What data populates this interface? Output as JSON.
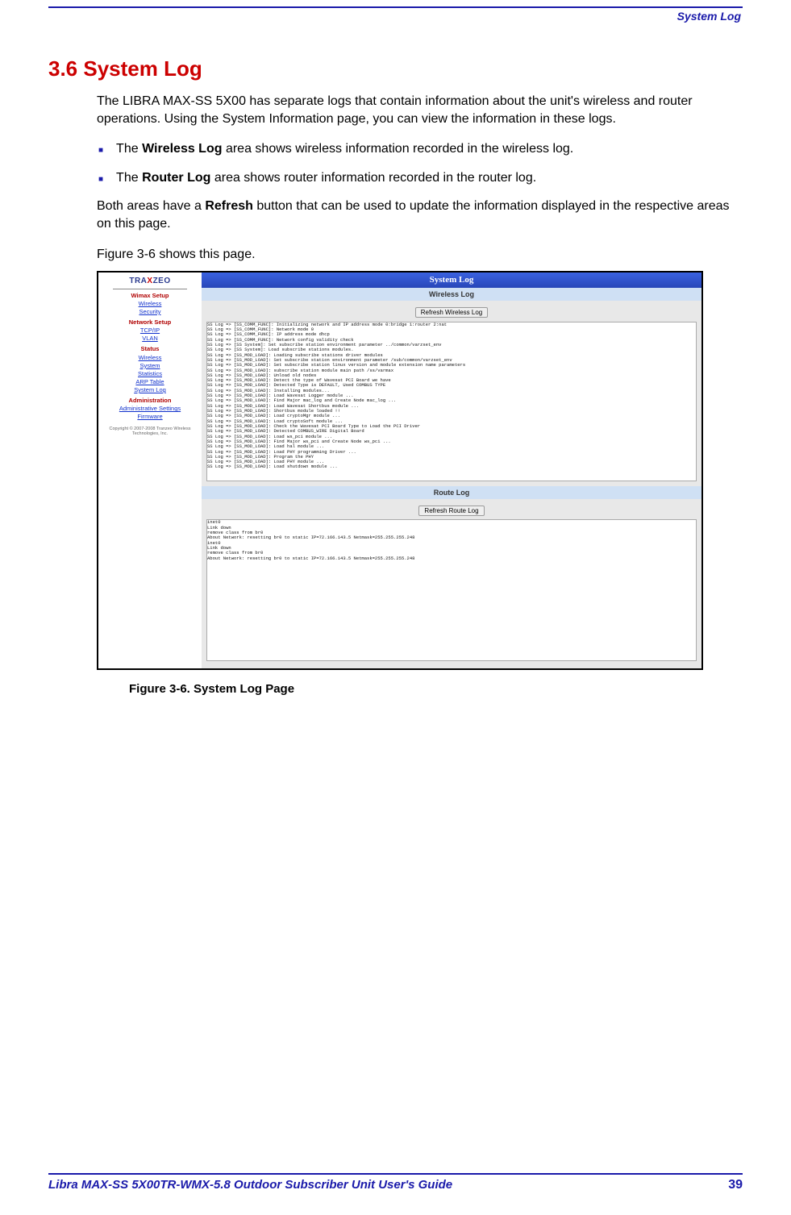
{
  "header": {
    "label": "System Log"
  },
  "section": {
    "heading": "3.6 System Log",
    "intro": "The LIBRA MAX-SS 5X00  has separate logs that contain information about the unit's wireless and router operations. Using the System Information page, you can view the information in these logs.",
    "bullet1_pre": "The ",
    "bullet1_bold": "Wireless Log",
    "bullet1_post": " area shows wireless information recorded in the wireless log.",
    "bullet2_pre": "The ",
    "bullet2_bold": "Router Log",
    "bullet2_post": " area shows router information recorded in the router log.",
    "refresh_pre": "Both areas have a ",
    "refresh_bold": "Refresh",
    "refresh_post": " button that can be used to update the information displayed in the respective areas on this page.",
    "figref": "Figure 3-6 shows this page.",
    "caption": "Figure 3-6. System Log Page"
  },
  "screenshot": {
    "logo_left": "TRA",
    "logo_x": "X",
    "logo_right": "ZEO",
    "sidebar": {
      "groups": [
        {
          "label": "Wimax Setup",
          "items": [
            "Wireless",
            "Security"
          ]
        },
        {
          "label": "Network Setup",
          "items": [
            "TCP/IP",
            "VLAN"
          ]
        },
        {
          "label": "Status",
          "items": [
            "Wireless",
            "System",
            "Statistics",
            "ARP Table",
            "System Log"
          ]
        },
        {
          "label": "Administration",
          "items": [
            "Administrative Settings",
            "Firmware"
          ]
        }
      ],
      "copyright": "Copyright © 2007-2008 Tranzeo Wireless Technologies, Inc."
    },
    "title": "System Log",
    "wireless": {
      "heading": "Wireless Log",
      "button": "Refresh Wireless Log",
      "content": "SS Log => [SS_COMM_FUNC]: Initializing network and IP address mode 0:bridge 1:router 2:nat\nSS Log => [SS_COMM_FUNC]: Network mode 0\nSS Log => [SS_COMM_FUNC]: IP address mode dhcp\nSS Log => [SS_COMM_FUNC]: Network config validity check\nSS Log => [SS System]: Set subscribe station environment parameter ../common/varzset_env\nSS Log => [SS System]: Load subscribe stations modules.\nSS Log => [SS_MOD_LOAD]: Loading subscribe stations driver modules\nSS Log => [SS_MOD_LOAD]: Set subscribe station environment parameter /sub/common/varzset_env\nSS Log => [SS_MOD_LOAD]: Set subscribe station linux version and module extension name parameters\nSS Log => [SS_MOD_LOAD]: subscribe station module main path /ss/varmax\nSS Log => [SS_MOD_LOAD]: Unload old nodes\nSS Log => [SS_MOD_LOAD]: Detect the type of Wavesat PCI Board we have\nSS Log => [SS_MOD_LOAD]: Detected Type is DEFAULT, Used COMBUS TYPE\nSS Log => [SS_MOD_LOAD]: Installing modules...\nSS Log => [SS_MOD_LOAD]: Load Wavesat Logger module ...\nSS Log => [SS_MOD_LOAD]: Find Major mac_log and Create Node mac_log ...\nSS Log => [SS_MOD_LOAD]: Load Wavesat Shortbus module ...\nSS Log => [SS_MOD_LOAD]: Shortbus module loaded !!\nSS Log => [SS_MOD_LOAD]: Load cryptoMgr module ...\nSS Log => [SS_MOD_LOAD]: Load cryptoSoft module ...\nSS Log => [SS_MOD_LOAD]: Check the Wavesat PCI Board Type to Load the PCI Driver\nSS Log => [SS_MOD_LOAD]: Detected COMBUS_WIRE Digital Board\nSS Log => [SS_MOD_LOAD]: Load ws_pci module ...\nSS Log => [SS_MOD_LOAD]: Find Major ws_pci and Create Node ws_pci ...\nSS Log => [SS_MOD_LOAD]: Load hal module ...\nSS Log => [SS_MOD_LOAD]: Load PHY programming Driver ...\nSS Log => [SS_MOD_LOAD]: Program the PHY\nSS Log => [SS_MOD_LOAD]: Load PHY module ...\nSS Log => [SS_MOD_LOAD]: Load shutdown module ..."
    },
    "route": {
      "heading": "Route Log",
      "button": "Refresh Route Log",
      "content": "inet0\nLink down\nremove class from br0\nAbout Network: resetting br0 to static IP=72.166.143.5 Netmask=255.255.255.248\ninet0\nLink down\nremove class from br0\nAbout Network: resetting br0 to static IP=72.166.143.5 Netmask=255.255.255.248"
    }
  },
  "footer": {
    "title": "Libra MAX-SS  5X00TR-WMX-5.8 Outdoor Subscriber Unit User's Guide",
    "page": "39"
  },
  "colors": {
    "rule": "#1a1aaa",
    "heading": "#cc0000",
    "titlebar_top": "#3a62e0",
    "titlebar_bottom": "#2846b8",
    "logsec_bg": "#cfe0f4",
    "sidebar_group": "#b00000",
    "sidebar_link": "#1030cc"
  }
}
